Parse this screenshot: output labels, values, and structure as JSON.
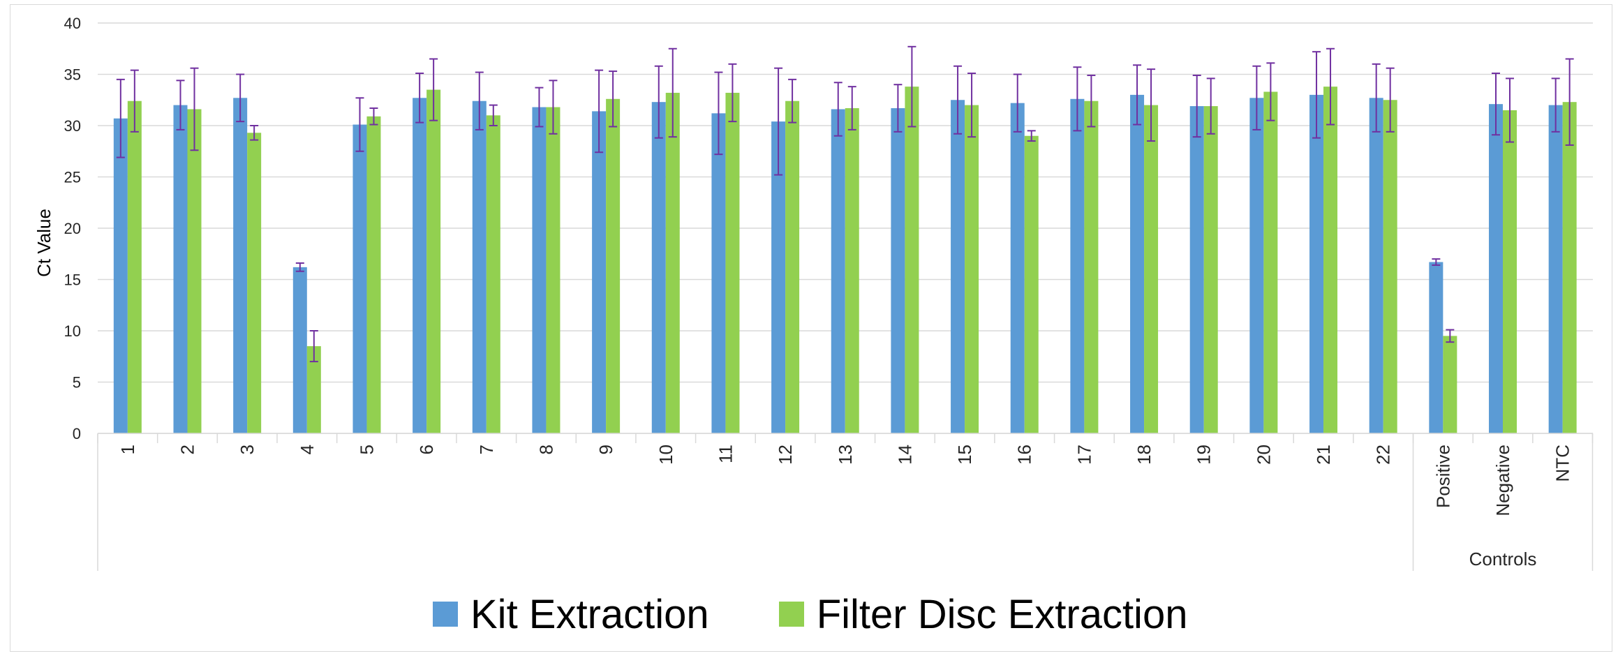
{
  "chart_data": {
    "type": "bar",
    "title": "",
    "xlabel": "",
    "ylabel": "Ct Value",
    "ylim": [
      0,
      40
    ],
    "yticks": [
      0,
      5,
      10,
      15,
      20,
      25,
      30,
      35,
      40
    ],
    "grid": true,
    "legend_position": "bottom",
    "categories": [
      "1",
      "2",
      "3",
      "4",
      "5",
      "6",
      "7",
      "8",
      "9",
      "10",
      "11",
      "12",
      "13",
      "14",
      "15",
      "16",
      "17",
      "18",
      "19",
      "20",
      "21",
      "22",
      "Positive",
      "Negative",
      "NTC"
    ],
    "category_groups": [
      {
        "label": "",
        "start": 0,
        "end": 21
      },
      {
        "label": "Controls",
        "start": 22,
        "end": 24
      }
    ],
    "series": [
      {
        "name": "Kit Extraction",
        "color": "#5b9bd5",
        "values": [
          30.7,
          32.0,
          32.7,
          16.2,
          30.1,
          32.7,
          32.4,
          31.8,
          31.4,
          32.3,
          31.2,
          30.4,
          31.6,
          31.7,
          32.5,
          32.2,
          32.6,
          33.0,
          31.9,
          32.7,
          33.0,
          32.7,
          16.7,
          32.1,
          32.0
        ],
        "errors": [
          3.8,
          2.4,
          2.3,
          0.4,
          2.6,
          2.4,
          2.8,
          1.9,
          4.0,
          3.5,
          4.0,
          5.2,
          2.6,
          2.3,
          3.3,
          2.8,
          3.1,
          2.9,
          3.0,
          3.1,
          4.2,
          3.3,
          0.3,
          3.0,
          2.6
        ]
      },
      {
        "name": "Filter Disc Extraction",
        "color": "#92d050",
        "values": [
          32.4,
          31.6,
          29.3,
          8.5,
          30.9,
          33.5,
          31.0,
          31.8,
          32.6,
          33.2,
          33.2,
          32.4,
          31.7,
          33.8,
          32.0,
          29.0,
          32.4,
          32.0,
          31.9,
          33.3,
          33.8,
          32.5,
          9.5,
          31.5,
          32.3
        ],
        "errors": [
          3.0,
          4.0,
          0.7,
          1.5,
          0.8,
          3.0,
          1.0,
          2.6,
          2.7,
          4.3,
          2.8,
          2.1,
          2.1,
          3.9,
          3.1,
          0.5,
          2.5,
          3.5,
          2.7,
          2.8,
          3.7,
          3.1,
          0.6,
          3.1,
          4.2
        ]
      }
    ],
    "error_bar_color": "#7030a0"
  }
}
